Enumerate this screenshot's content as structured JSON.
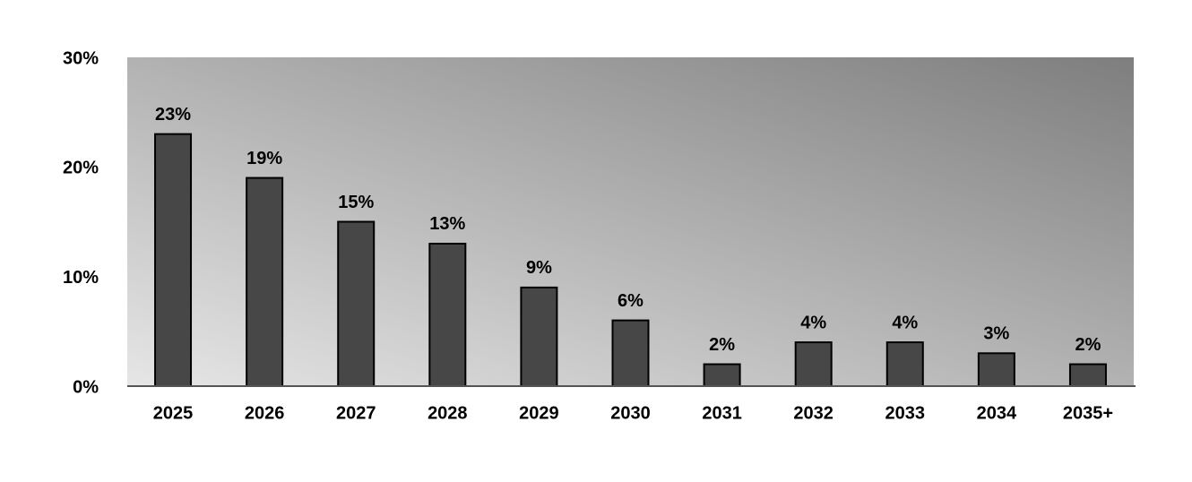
{
  "chart_data": {
    "type": "bar",
    "categories": [
      "2025",
      "2026",
      "2027",
      "2028",
      "2029",
      "2030",
      "2031",
      "2032",
      "2033",
      "2034",
      "2035+"
    ],
    "values": [
      23,
      19,
      15,
      13,
      9,
      6,
      2,
      4,
      4,
      3,
      2
    ],
    "value_labels": [
      "23%",
      "19%",
      "15%",
      "13%",
      "9%",
      "6%",
      "2%",
      "4%",
      "4%",
      "3%",
      "2%"
    ],
    "color": "#474747",
    "ylim": [
      0,
      30
    ],
    "yticks": [
      {
        "value": 0,
        "label": "0%"
      },
      {
        "value": 10,
        "label": "10%"
      },
      {
        "value": 20,
        "label": "20%"
      },
      {
        "value": 30,
        "label": "30%"
      }
    ],
    "grid": false
  }
}
